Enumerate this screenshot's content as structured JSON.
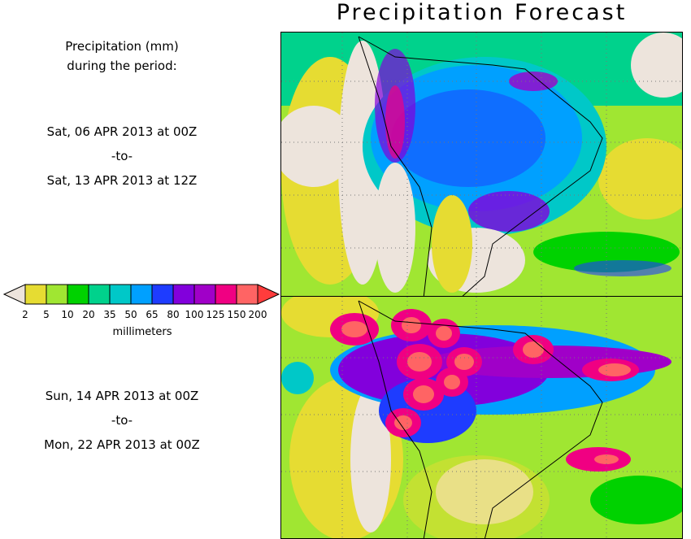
{
  "title": "Precipitation Forecast",
  "legend_heading": [
    "Precipitation (mm)",
    "during the period:"
  ],
  "periods": [
    {
      "start": "Sat, 06 APR 2013 at 00Z",
      "sep": "-to-",
      "end": "Sat, 13 APR 2013 at 12Z"
    },
    {
      "start": "Sun, 14 APR 2013 at 00Z",
      "sep": "-to-",
      "end": "Mon, 22 APR 2013 at 00Z"
    }
  ],
  "colorbar": {
    "unit": "millimeters",
    "ticks": [
      "2",
      "5",
      "10",
      "20",
      "35",
      "50",
      "65",
      "80",
      "100",
      "125",
      "150",
      "200"
    ],
    "under_color": "#ede4dc",
    "over_color": "#ff3c3c",
    "colors": [
      "#e6dc32",
      "#a0e632",
      "#00d200",
      "#00d28c",
      "#00c8c8",
      "#00a0ff",
      "#1e3cff",
      "#8200dc",
      "#a000c8",
      "#f00082",
      "#ff6464"
    ]
  }
}
